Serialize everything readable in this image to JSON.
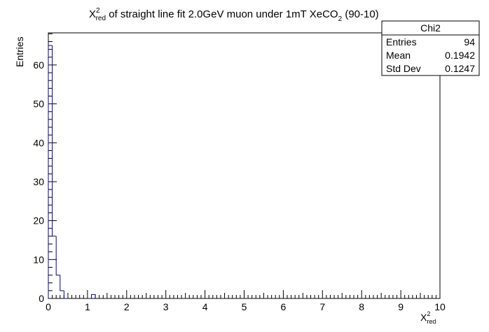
{
  "chart_data": {
    "type": "bar",
    "style": "step-histogram",
    "title_main": "X",
    "title_sup": "2",
    "title_sub": "red",
    "title_rest": " of straight line fit 2.0GeV muon under 1mT XeCO",
    "title_sub2": "2",
    "title_end": " (90-10)",
    "title": "X²_red of straight line fit 2.0GeV muon under 1mT XeCO2 (90-10)",
    "xlabel_main": "X",
    "xlabel_sup": "2",
    "xlabel_sub": "red",
    "ylabel": "Entries",
    "xlim": [
      0,
      10
    ],
    "ylim": [
      0,
      68.25
    ],
    "bin_width": 0.1,
    "bin_lowedges": [
      0.0,
      0.1,
      0.2,
      0.3,
      0.4,
      1.1
    ],
    "bin_counts": [
      65,
      16,
      6,
      2,
      0,
      1
    ],
    "x_major_ticks": [
      "0",
      "1",
      "2",
      "3",
      "4",
      "5",
      "6",
      "7",
      "8",
      "9",
      "10"
    ],
    "y_major_ticks": [
      "0",
      "10",
      "20",
      "30",
      "40",
      "50",
      "60"
    ],
    "line_color": "#000099",
    "stats": {
      "name": "Chi2",
      "rows": [
        {
          "label": "Entries",
          "value": "94"
        },
        {
          "label": "Mean",
          "value": "0.1942"
        },
        {
          "label": "Std Dev",
          "value": "0.1247"
        }
      ]
    }
  }
}
